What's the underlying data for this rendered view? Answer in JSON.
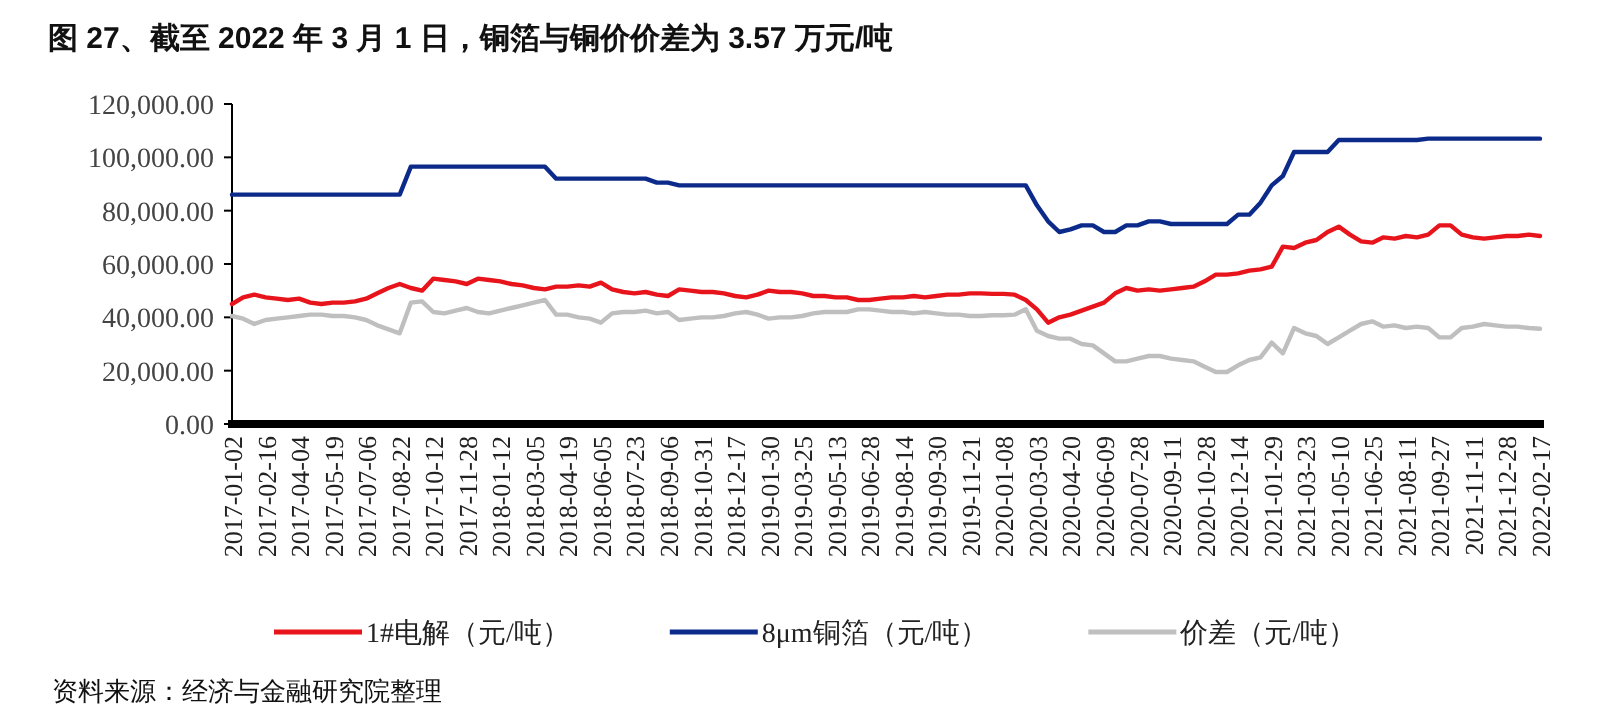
{
  "chart_data": {
    "type": "line",
    "title": "图 27、截至 2022 年 3 月 1 日，铜箔与铜价价差为 3.57 万元/吨",
    "annotations": [
      "资料来源：经济与金融研究院整理"
    ],
    "categories": [
      "2017-01-02",
      null,
      null,
      "2017-02-16",
      null,
      null,
      "2017-04-04",
      null,
      null,
      "2017-05-19",
      null,
      null,
      "2017-07-06",
      null,
      null,
      "2017-08-22",
      null,
      null,
      "2017-10-12",
      null,
      null,
      "2017-11-28",
      null,
      null,
      "2018-01-12",
      null,
      null,
      "2018-03-05",
      null,
      null,
      "2018-04-19",
      null,
      null,
      "2018-06-05",
      null,
      null,
      "2018-07-23",
      null,
      null,
      "2018-09-06",
      null,
      null,
      "2018-10-31",
      null,
      null,
      "2018-12-17",
      null,
      null,
      "2019-01-30",
      null,
      null,
      "2019-03-25",
      null,
      null,
      "2019-05-13",
      null,
      null,
      "2019-06-28",
      null,
      null,
      "2019-08-14",
      null,
      null,
      "2019-09-30",
      null,
      null,
      "2019-11-21",
      null,
      null,
      "2020-01-08",
      null,
      null,
      "2020-03-03",
      null,
      null,
      "2020-04-20",
      null,
      null,
      "2020-06-09",
      null,
      null,
      "2020-07-28",
      null,
      null,
      "2020-09-11",
      null,
      null,
      "2020-10-28",
      null,
      null,
      "2020-12-14",
      null,
      null,
      "2021-01-29",
      null,
      null,
      "2021-03-23",
      null,
      null,
      "2021-05-10",
      null,
      null,
      "2021-06-25",
      null,
      null,
      "2021-08-11",
      null,
      null,
      "2021-09-27",
      null,
      null,
      "2021-11-11",
      null,
      null,
      "2021-12-28",
      null,
      null,
      "2022-02-17"
    ],
    "series": [
      {
        "name": "1#电解（元/吨）",
        "color": "#e8141b",
        "values": [
          45000,
          47500,
          48500,
          47500,
          47000,
          46500,
          47000,
          45500,
          45000,
          45500,
          45500,
          46000,
          47000,
          49000,
          51000,
          52500,
          51000,
          50000,
          54500,
          54000,
          53500,
          52500,
          54500,
          54000,
          53500,
          52500,
          52000,
          51000,
          50500,
          51500,
          51500,
          52000,
          51500,
          53000,
          50500,
          49500,
          49000,
          49500,
          48500,
          48000,
          50500,
          50000,
          49500,
          49500,
          49000,
          48000,
          47500,
          48500,
          50000,
          49500,
          49500,
          49000,
          48000,
          48000,
          47500,
          47500,
          46500,
          46500,
          47000,
          47500,
          47500,
          48000,
          47500,
          48000,
          48500,
          48500,
          49000,
          49000,
          48800,
          48800,
          48500,
          46500,
          43000,
          38000,
          40000,
          41000,
          42500,
          44000,
          45500,
          49000,
          51000,
          50000,
          50500,
          50000,
          50500,
          51000,
          51500,
          53500,
          56000,
          56000,
          56500,
          57500,
          58000,
          59000,
          66500,
          66000,
          68000,
          69000,
          72000,
          74000,
          71000,
          68500,
          68000,
          70000,
          69500,
          70500,
          70000,
          71000,
          74500,
          74500,
          71000,
          70000,
          69500,
          70000,
          70500,
          70500,
          71000,
          70500
        ]
      },
      {
        "name": "8μm铜箔（元/吨）",
        "color": "#0b2a8a",
        "values": [
          86000,
          86000,
          86000,
          86000,
          86000,
          86000,
          86000,
          86000,
          86000,
          86000,
          86000,
          86000,
          86000,
          86000,
          86000,
          86000,
          96500,
          96500,
          96500,
          96500,
          96500,
          96500,
          96500,
          96500,
          96500,
          96500,
          96500,
          96500,
          96500,
          92000,
          92000,
          92000,
          92000,
          92000,
          92000,
          92000,
          92000,
          92000,
          90500,
          90500,
          89500,
          89500,
          89500,
          89500,
          89500,
          89500,
          89500,
          89500,
          89500,
          89500,
          89500,
          89500,
          89500,
          89500,
          89500,
          89500,
          89500,
          89500,
          89500,
          89500,
          89500,
          89500,
          89500,
          89500,
          89500,
          89500,
          89500,
          89500,
          89500,
          89500,
          89500,
          89500,
          82000,
          76000,
          72000,
          73000,
          74500,
          74500,
          72000,
          72000,
          74500,
          74500,
          76000,
          76000,
          75000,
          75000,
          75000,
          75000,
          75000,
          75000,
          78500,
          78500,
          83000,
          89500,
          93000,
          102000,
          102000,
          102000,
          102000,
          106500,
          106500,
          106500,
          106500,
          106500,
          106500,
          106500,
          106500,
          107000,
          107000,
          107000,
          107000,
          107000,
          107000,
          107000,
          107000,
          107000,
          107000,
          107000
        ]
      },
      {
        "name": "价差（元/吨）",
        "color": "#bfbfbf",
        "values": [
          40500,
          39500,
          37500,
          39000,
          39500,
          40000,
          40500,
          41000,
          41000,
          40500,
          40500,
          40000,
          39000,
          37000,
          35500,
          34000,
          45500,
          46000,
          42000,
          41500,
          42500,
          43500,
          42000,
          41500,
          42500,
          43500,
          44500,
          45500,
          46500,
          41000,
          41000,
          40000,
          39500,
          38000,
          41500,
          42000,
          42000,
          42500,
          41500,
          42000,
          39000,
          39500,
          40000,
          40000,
          40500,
          41500,
          42000,
          41000,
          39500,
          40000,
          40000,
          40500,
          41500,
          42000,
          42000,
          42000,
          43000,
          43000,
          42500,
          42000,
          42000,
          41500,
          42000,
          41500,
          41000,
          41000,
          40500,
          40500,
          40800,
          40800,
          41000,
          43000,
          35000,
          33000,
          32000,
          32000,
          30000,
          29500,
          26500,
          23500,
          23500,
          24500,
          25500,
          25500,
          24500,
          24000,
          23500,
          21500,
          19500,
          19500,
          22000,
          24000,
          25000,
          30500,
          26500,
          36000,
          34000,
          33000,
          30000,
          32500,
          35000,
          37500,
          38500,
          36500,
          37000,
          36000,
          36500,
          36000,
          32500,
          32500,
          36000,
          36500,
          37500,
          37000,
          36500,
          36500,
          36000,
          35700
        ]
      }
    ],
    "ylim": [
      0,
      120000
    ],
    "yticks": [
      {
        "value": 0,
        "label": "0.00"
      },
      {
        "value": 20000,
        "label": "20,000.00"
      },
      {
        "value": 40000,
        "label": "40,000.00"
      },
      {
        "value": 60000,
        "label": "60,000.00"
      },
      {
        "value": 80000,
        "label": "80,000.00"
      },
      {
        "value": 100000,
        "label": "100,000.00"
      },
      {
        "value": 120000,
        "label": "120,000.00"
      }
    ],
    "legend": "bottom"
  }
}
